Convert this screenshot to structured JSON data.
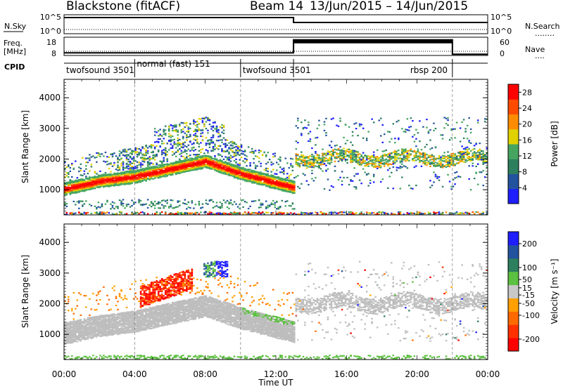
{
  "header": {
    "station": "Blackstone (fitACF)",
    "beam": "Beam 14",
    "date_range": "13/Jun/2015 – 14/Jun/2015"
  },
  "top_panels": {
    "nsky_label": "N.Sky",
    "nsky_ticks": [
      "10^5",
      "10^0"
    ],
    "nsearch_label": "N.Search",
    "nsearch_ticks": [
      "10^5",
      "10^0"
    ],
    "freq_label": "Freq.",
    "freq_unit": "[MHz]",
    "freq_ticks": [
      "18",
      "8"
    ],
    "nave_label": "Nave",
    "nave_ticks": [
      "60",
      "0"
    ],
    "cpid_label": "CPID",
    "modes": [
      {
        "name": "twofsound 3501",
        "start": 0,
        "end": 4
      },
      {
        "name": "normal (fast) 151",
        "start": 4,
        "end": 10
      },
      {
        "name": "twofsound 3501",
        "start": 10,
        "end": 13
      },
      {
        "name": "rbsp 200",
        "start": 13,
        "end": 22
      }
    ]
  },
  "colors": {
    "power": [
      "#1e1eff",
      "#23539f",
      "#2d7f5e",
      "#45a560",
      "#e0d000",
      "#ff8c00",
      "#ff4b00",
      "#ff0000"
    ],
    "velocity": [
      "#1e1eff",
      "#23539f",
      "#2d7f5e",
      "#5cc040",
      "#c8c8c8",
      "#ffa000",
      "#ff6a00",
      "#ff3000",
      "#ff0000"
    ],
    "ground_scatter": "#bdbdbd"
  },
  "chart_data": [
    {
      "type": "heatmap",
      "title": "Power",
      "xlabel": "Time UT",
      "ylabel": "Slant Range [km]",
      "xlim": [
        0,
        24
      ],
      "ylim": [
        180,
        4600
      ],
      "x_ticks": [
        "00:00",
        "04:00",
        "08:00",
        "12:00",
        "16:00",
        "20:00",
        "00:00"
      ],
      "y_ticks": [
        1000,
        2000,
        3000,
        4000
      ],
      "colorbar": {
        "label": "Power [dB]",
        "ticks": [
          4,
          8,
          12,
          16,
          20,
          24,
          28
        ],
        "range": [
          0,
          30
        ]
      },
      "main_echo_band_km": [
        {
          "t": 0,
          "range": 1050
        },
        {
          "t": 2,
          "range": 1300
        },
        {
          "t": 4,
          "range": 1450
        },
        {
          "t": 6,
          "range": 1700
        },
        {
          "t": 8,
          "range": 1950
        },
        {
          "t": 10,
          "range": 1550
        },
        {
          "t": 13,
          "range": 1100
        }
      ]
    },
    {
      "type": "heatmap",
      "title": "Velocity",
      "xlabel": "Time UT",
      "ylabel": "Slant Range [km]",
      "xlim": [
        0,
        24
      ],
      "ylim": [
        180,
        4600
      ],
      "x_ticks": [
        "00:00",
        "04:00",
        "08:00",
        "12:00",
        "16:00",
        "20:00",
        "00:00"
      ],
      "y_ticks": [
        1000,
        2000,
        3000,
        4000
      ],
      "colorbar": {
        "label": "Velocity [m s⁻¹]",
        "ticks": [
          200,
          100,
          50,
          15,
          -15,
          -50,
          -100,
          -200
        ],
        "range": [
          -250,
          250
        ]
      }
    }
  ],
  "x_axis_label": "Time UT"
}
